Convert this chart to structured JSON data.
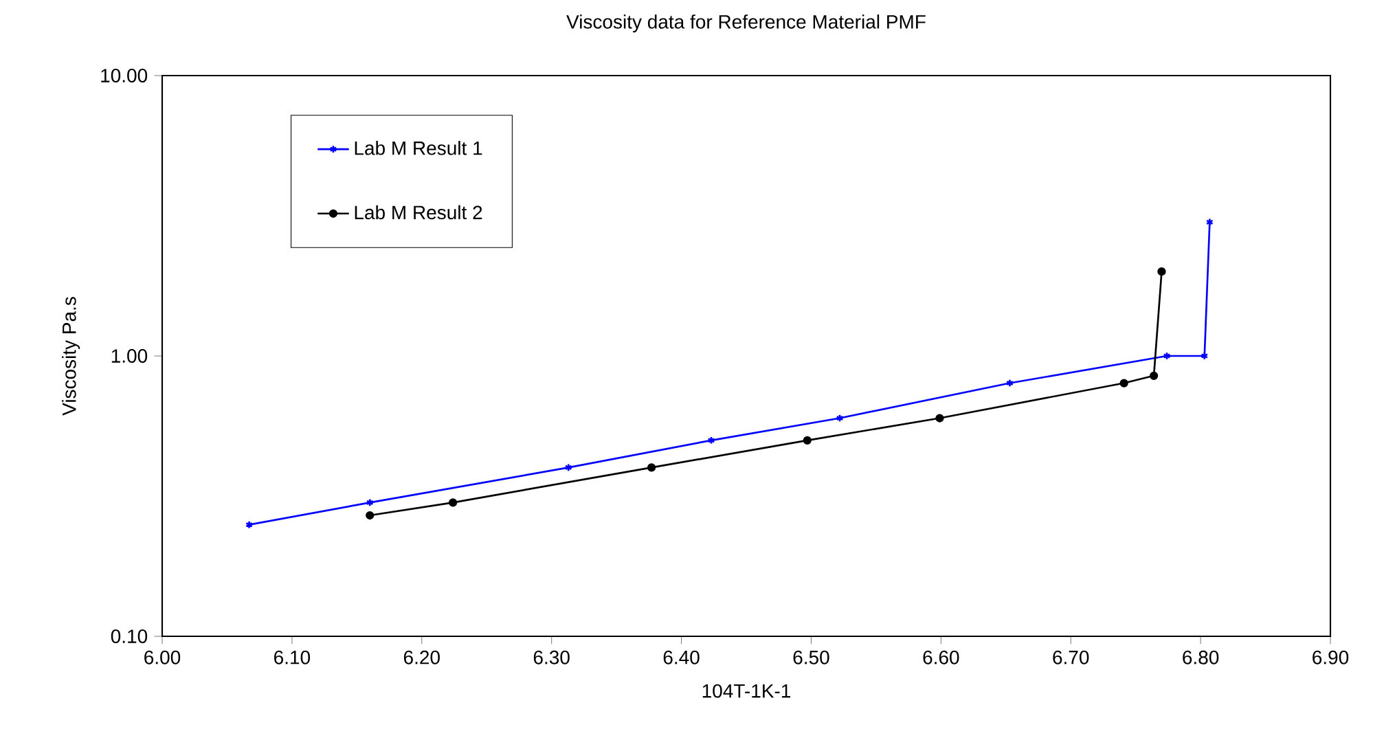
{
  "chart_data": {
    "type": "line",
    "title": "Viscosity data for Reference Material PMF",
    "xlabel": "104T-1K-1",
    "ylabel": "Viscosity Pa.s",
    "log": "y",
    "xlim": [
      6.0,
      6.9
    ],
    "ylim": [
      0.1,
      10
    ],
    "xticks": [
      {
        "value": 6.0,
        "label": "6.00"
      },
      {
        "value": 6.1,
        "label": "6.10"
      },
      {
        "value": 6.2,
        "label": "6.20"
      },
      {
        "value": 6.3,
        "label": "6.30"
      },
      {
        "value": 6.4,
        "label": "6.40"
      },
      {
        "value": 6.5,
        "label": "6.50"
      },
      {
        "value": 6.6,
        "label": "6.60"
      },
      {
        "value": 6.7,
        "label": "6.70"
      },
      {
        "value": 6.8,
        "label": "6.80"
      },
      {
        "value": 6.9,
        "label": "6.90"
      }
    ],
    "yticks": [
      {
        "value": 0.1,
        "label": "0.10"
      },
      {
        "value": 1,
        "label": "1.00"
      },
      {
        "value": 10,
        "label": "10.00"
      }
    ],
    "legend": "top left",
    "grid": false,
    "series": [
      {
        "name": "Lab M Result 1",
        "color": "#0000ff",
        "marker": "cross",
        "x": [
          6.067,
          6.16,
          6.313,
          6.423,
          6.522,
          6.653,
          6.774,
          6.803,
          6.807
        ],
        "values": [
          0.25,
          0.3,
          0.4,
          0.5,
          0.6,
          0.8,
          1.0,
          1.0,
          3.0
        ]
      },
      {
        "name": "Lab M Result 2",
        "color": "#000000",
        "marker": "circle",
        "x": [
          6.16,
          6.224,
          6.377,
          6.497,
          6.599,
          6.741,
          6.764,
          6.77
        ],
        "values": [
          0.27,
          0.3,
          0.4,
          0.5,
          0.6,
          0.8,
          0.85,
          2.0
        ]
      }
    ]
  }
}
